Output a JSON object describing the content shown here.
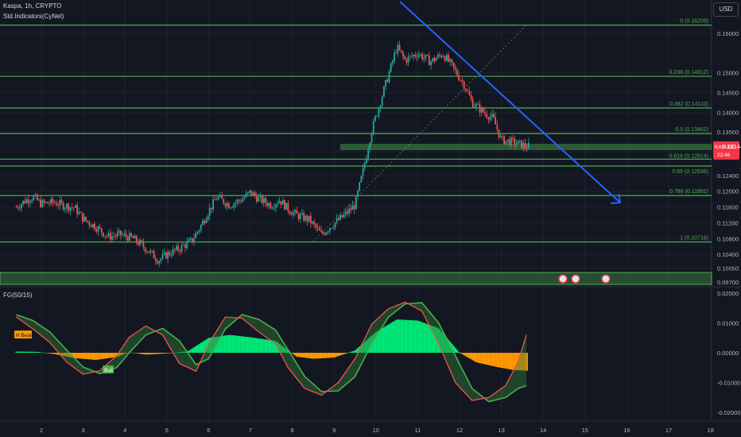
{
  "header": {
    "title": "Kaspa, 1h, CRYPTO",
    "indicator": "Std.Indicators(CyNet)"
  },
  "currency_button": "USD",
  "oscillator": {
    "label": "FG(50/15)",
    "tag_bear": "H Bear",
    "tag_bull": "Bull"
  },
  "price_tag": {
    "symbol": "KASUSD",
    "price": "0.13144",
    "countdown": "22:46"
  },
  "colors": {
    "background": "#131722",
    "bull": "#26a69a",
    "bear": "#ef5350",
    "fib": "#4caf50",
    "trendline": "#2962ff",
    "hist_pos": "#00e676",
    "hist_neg": "#ff9800"
  },
  "chart_data": [
    {
      "type": "candlestick",
      "title": "Kaspa, 1h, CRYPTO",
      "price_ticks": [
        "0.16000",
        "0.15000",
        "0.14500",
        "0.14000",
        "0.13500",
        "0.13000",
        "0.12400",
        "0.12000",
        "0.11600",
        "0.11200",
        "0.10800",
        "0.10400",
        "0.10050",
        "0.09700"
      ],
      "x_ticks": [
        "2",
        "3",
        "4",
        "5",
        "6",
        "7",
        "8",
        "9",
        "10",
        "11",
        "12",
        "13",
        "14",
        "15",
        "16",
        "17",
        "18"
      ],
      "fib_levels": [
        {
          "label": "0 (0.16209)",
          "value": 0.16209
        },
        {
          "label": "0.236 (0.14912)",
          "value": 0.14912
        },
        {
          "label": "0.382 (0.14110)",
          "value": 0.1411
        },
        {
          "label": "0.5 (0.13462)",
          "value": 0.13462
        },
        {
          "label": "0.618 (0.12814)",
          "value": 0.12814
        },
        {
          "label": "0.65 (0.12638)",
          "value": 0.12638
        },
        {
          "label": "0.786 (0.11891)",
          "value": 0.11891
        },
        {
          "label": "1 (0.10716)",
          "value": 0.10716
        }
      ],
      "close_path": [
        [
          1.4,
          0.116
        ],
        [
          1.6,
          0.1175
        ],
        [
          1.8,
          0.1186
        ],
        [
          2.0,
          0.1168
        ],
        [
          2.3,
          0.1172
        ],
        [
          2.5,
          0.1165
        ],
        [
          2.8,
          0.1158
        ],
        [
          3.0,
          0.113
        ],
        [
          3.3,
          0.111
        ],
        [
          3.6,
          0.1085
        ],
        [
          3.9,
          0.109
        ],
        [
          4.2,
          0.108
        ],
        [
          4.5,
          0.1055
        ],
        [
          4.8,
          0.1025
        ],
        [
          5.0,
          0.104
        ],
        [
          5.3,
          0.1055
        ],
        [
          5.6,
          0.1075
        ],
        [
          5.8,
          0.111
        ],
        [
          6.0,
          0.115
        ],
        [
          6.2,
          0.1185
        ],
        [
          6.5,
          0.1165
        ],
        [
          6.8,
          0.118
        ],
        [
          7.0,
          0.1198
        ],
        [
          7.2,
          0.118
        ],
        [
          7.5,
          0.1165
        ],
        [
          7.7,
          0.1178
        ],
        [
          7.9,
          0.1155
        ],
        [
          8.1,
          0.114
        ],
        [
          8.4,
          0.1128
        ],
        [
          8.7,
          0.109
        ],
        [
          8.9,
          0.111
        ],
        [
          9.2,
          0.1135
        ],
        [
          9.5,
          0.1165
        ],
        [
          9.7,
          0.1255
        ],
        [
          9.9,
          0.1355
        ],
        [
          10.2,
          0.146
        ],
        [
          10.5,
          0.1565
        ],
        [
          10.7,
          0.1532
        ],
        [
          11.0,
          0.155
        ],
        [
          11.3,
          0.1528
        ],
        [
          11.6,
          0.1548
        ],
        [
          11.8,
          0.152
        ],
        [
          12.1,
          0.1472
        ],
        [
          12.3,
          0.1425
        ],
        [
          12.6,
          0.1398
        ],
        [
          12.8,
          0.1385
        ],
        [
          13.0,
          0.133
        ],
        [
          13.3,
          0.1324
        ],
        [
          13.6,
          0.1314
        ]
      ],
      "oscillator_ticks": [
        "0.02000",
        "0.01000",
        "0.00000",
        "-0.01000",
        "-0.02000"
      ],
      "osc_histogram": [
        [
          1.4,
          0.0004
        ],
        [
          1.9,
          0.0003
        ],
        [
          2.3,
          -0.0004
        ],
        [
          2.8,
          -0.0018
        ],
        [
          3.3,
          -0.0024
        ],
        [
          3.8,
          -0.0014
        ],
        [
          4.1,
          0.0002
        ],
        [
          4.5,
          -0.0006
        ],
        [
          5.0,
          -0.0002
        ],
        [
          5.5,
          0.0005
        ],
        [
          6.0,
          0.005
        ],
        [
          6.5,
          0.006
        ],
        [
          7.0,
          0.0052
        ],
        [
          7.6,
          0.004
        ],
        [
          8.1,
          -0.0013
        ],
        [
          8.5,
          -0.002
        ],
        [
          9.0,
          -0.0016
        ],
        [
          9.5,
          0.0008
        ],
        [
          10.0,
          0.007
        ],
        [
          10.5,
          0.0112
        ],
        [
          11.0,
          0.0108
        ],
        [
          11.5,
          0.0082
        ],
        [
          12.0,
          0.0
        ],
        [
          12.4,
          -0.0032
        ],
        [
          12.9,
          -0.0048
        ],
        [
          13.3,
          -0.0058
        ],
        [
          13.6,
          -0.006
        ]
      ],
      "osc_line_fast": [
        [
          1.4,
          0.012
        ],
        [
          1.8,
          0.008
        ],
        [
          2.2,
          0.0035
        ],
        [
          2.6,
          -0.003
        ],
        [
          3.0,
          -0.0072
        ],
        [
          3.4,
          -0.006
        ],
        [
          3.8,
          -0.001
        ],
        [
          4.1,
          0.0052
        ],
        [
          4.5,
          0.009
        ],
        [
          4.9,
          0.006
        ],
        [
          5.3,
          -0.0036
        ],
        [
          5.7,
          -0.0062
        ],
        [
          6.0,
          0.003
        ],
        [
          6.4,
          0.012
        ],
        [
          6.8,
          0.0116
        ],
        [
          7.2,
          0.007
        ],
        [
          7.6,
          0.003
        ],
        [
          7.9,
          -0.005
        ],
        [
          8.3,
          -0.012
        ],
        [
          8.7,
          -0.0142
        ],
        [
          9.1,
          -0.01
        ],
        [
          9.5,
          -0.002
        ],
        [
          9.9,
          0.0096
        ],
        [
          10.3,
          0.0148
        ],
        [
          10.7,
          0.017
        ],
        [
          11.1,
          0.014
        ],
        [
          11.5,
          0.003
        ],
        [
          11.9,
          -0.01
        ],
        [
          12.3,
          -0.016
        ],
        [
          12.7,
          -0.015
        ],
        [
          13.1,
          -0.011
        ],
        [
          13.4,
          -0.003
        ],
        [
          13.6,
          0.006
        ]
      ],
      "osc_line_slow": [
        [
          1.4,
          0.0128
        ],
        [
          1.8,
          0.0108
        ],
        [
          2.2,
          0.007
        ],
        [
          2.6,
          0.001
        ],
        [
          3.0,
          -0.0048
        ],
        [
          3.4,
          -0.007
        ],
        [
          3.8,
          -0.005
        ],
        [
          4.1,
          0.0
        ],
        [
          4.5,
          0.006
        ],
        [
          4.9,
          0.0082
        ],
        [
          5.3,
          0.004
        ],
        [
          5.7,
          -0.004
        ],
        [
          6.0,
          -0.002
        ],
        [
          6.4,
          0.008
        ],
        [
          6.8,
          0.0128
        ],
        [
          7.2,
          0.0112
        ],
        [
          7.6,
          0.0076
        ],
        [
          7.9,
          0.001
        ],
        [
          8.3,
          -0.008
        ],
        [
          8.7,
          -0.013
        ],
        [
          9.1,
          -0.0128
        ],
        [
          9.5,
          -0.008
        ],
        [
          9.9,
          0.003
        ],
        [
          10.3,
          0.012
        ],
        [
          10.7,
          0.0164
        ],
        [
          11.1,
          0.0168
        ],
        [
          11.5,
          0.01
        ],
        [
          11.9,
          -0.001
        ],
        [
          12.3,
          -0.012
        ],
        [
          12.7,
          -0.0164
        ],
        [
          13.1,
          -0.015
        ],
        [
          13.4,
          -0.012
        ],
        [
          13.6,
          -0.011
        ]
      ]
    }
  ]
}
